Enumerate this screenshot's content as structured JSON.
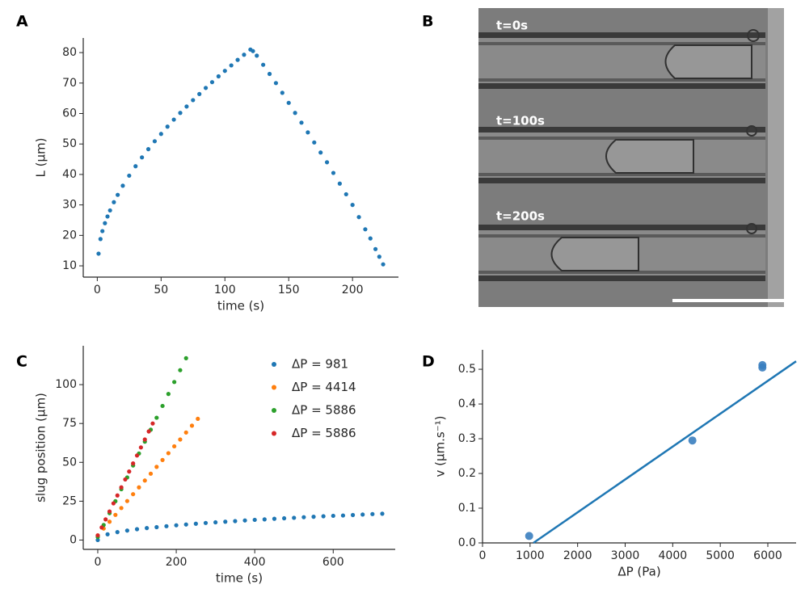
{
  "chart_data": [
    {
      "type": "scatter",
      "panel": "A",
      "xlabel": "time (s)",
      "ylabel": "L (μm)",
      "color": "#1f77b4",
      "x": [
        1,
        2.5,
        4,
        6,
        8,
        10,
        13,
        16,
        20,
        25,
        30,
        35,
        40,
        45,
        50,
        55,
        60,
        65,
        70,
        75,
        80,
        85,
        90,
        95,
        100,
        105,
        110,
        115,
        120,
        122,
        125,
        130,
        135,
        140,
        145,
        150,
        155,
        160,
        165,
        170,
        175,
        180,
        185,
        190,
        195,
        200,
        205,
        210,
        214,
        218,
        221,
        224
      ],
      "values": [
        14,
        18.8,
        21.4,
        24.0,
        26.2,
        28.2,
        30.9,
        33.3,
        36.3,
        39.6,
        42.7,
        45.6,
        48.3,
        50.9,
        53.3,
        55.7,
        58.0,
        60.2,
        62.3,
        64.4,
        66.4,
        68.4,
        70.3,
        72.2,
        74.0,
        75.8,
        77.6,
        79.3,
        81.0,
        80.5,
        79,
        76,
        73,
        70,
        66.8,
        63.5,
        60.2,
        57,
        53.8,
        50.5,
        47.2,
        44,
        40.5,
        37,
        33.5,
        30,
        26,
        22,
        19,
        15.5,
        13,
        10.5
      ],
      "xlim": [
        -11,
        236
      ],
      "ylim": [
        6.3,
        84.8
      ],
      "xticks": [
        0,
        50,
        100,
        150,
        200
      ],
      "yticks": [
        10,
        20,
        30,
        40,
        50,
        60,
        70,
        80
      ]
    },
    {
      "type": "image",
      "panel": "B",
      "labels": [
        "t=0s",
        "t=100s",
        "t=200s"
      ]
    },
    {
      "type": "scatter",
      "panel": "C",
      "xlabel": "time (s)",
      "ylabel": "slug position (μm)",
      "legend": "upper right",
      "xlim": [
        -37,
        758
      ],
      "ylim": [
        -6,
        125
      ],
      "xticks": [
        0,
        200,
        400,
        600
      ],
      "yticks": [
        0,
        25,
        50,
        75,
        100
      ],
      "series": [
        {
          "name": "ΔP = 981",
          "color": "#1f77b4",
          "x": [
            0,
            25,
            50,
            75,
            100,
            125,
            150,
            175,
            200,
            225,
            250,
            275,
            300,
            325,
            350,
            375,
            400,
            425,
            450,
            475,
            500,
            525,
            550,
            575,
            600,
            625,
            650,
            675,
            700,
            725
          ],
          "values": [
            0,
            3.7,
            5.1,
            6.1,
            7.0,
            7.7,
            8.3,
            8.9,
            9.5,
            10.0,
            10.5,
            11.0,
            11.4,
            11.8,
            12.2,
            12.6,
            13.0,
            13.3,
            13.7,
            14.0,
            14.3,
            14.7,
            15.0,
            15.3,
            15.6,
            15.8,
            16.1,
            16.4,
            16.7,
            16.95
          ]
        },
        {
          "name": "ΔP = 4414",
          "color": "#ff7f0e",
          "x": [
            0,
            15,
            30,
            45,
            60,
            75,
            90,
            105,
            120,
            135,
            150,
            165,
            180,
            195,
            210,
            225,
            240,
            255
          ],
          "values": [
            3,
            7.4,
            11.8,
            16.2,
            20.6,
            25.1,
            29.5,
            33.9,
            38.3,
            42.7,
            47.1,
            51.5,
            55.9,
            60.3,
            64.7,
            69.2,
            73.6,
            78
          ]
        },
        {
          "name": "ΔP = 5886",
          "color": "#2ca02c",
          "x": [
            0,
            15,
            30,
            45,
            60,
            75,
            90,
            105,
            120,
            135,
            150,
            165,
            180,
            195,
            210,
            225
          ],
          "values": [
            2,
            9.7,
            17.3,
            25,
            32.7,
            40.3,
            48,
            55.7,
            63.3,
            71,
            78.7,
            86.3,
            94,
            101.7,
            109.3,
            117
          ]
        },
        {
          "name": "ΔP = 5886",
          "color": "#d62728",
          "x": [
            0,
            10,
            20,
            30,
            40,
            50,
            60,
            70,
            80,
            90,
            100,
            110,
            120,
            130,
            140
          ],
          "values": [
            3,
            8.1,
            13.3,
            18.4,
            23.6,
            28.7,
            33.9,
            39,
            44.1,
            49.3,
            54.4,
            59.6,
            64.7,
            69.9,
            75
          ]
        }
      ]
    },
    {
      "type": "scatter",
      "panel": "D",
      "xlabel": "ΔP (Pa)",
      "ylabel": "v (μm.s⁻¹)",
      "color": "#3a7ebf",
      "x": [
        981,
        4414,
        5886,
        5886
      ],
      "values": [
        0.02,
        0.295,
        0.505,
        0.512
      ],
      "fit": {
        "x": [
          1070,
          6595
        ],
        "values": [
          0,
          0.523
        ],
        "color": "#1f77b4"
      },
      "xlim": [
        0,
        6595
      ],
      "ylim": [
        0,
        0.556
      ],
      "xticks": [
        0,
        1000,
        2000,
        3000,
        4000,
        5000,
        6000
      ],
      "yticks": [
        {
          "value": 0,
          "label": "0.0"
        },
        0.1,
        0.2,
        0.3,
        0.4,
        0.5
      ]
    }
  ]
}
